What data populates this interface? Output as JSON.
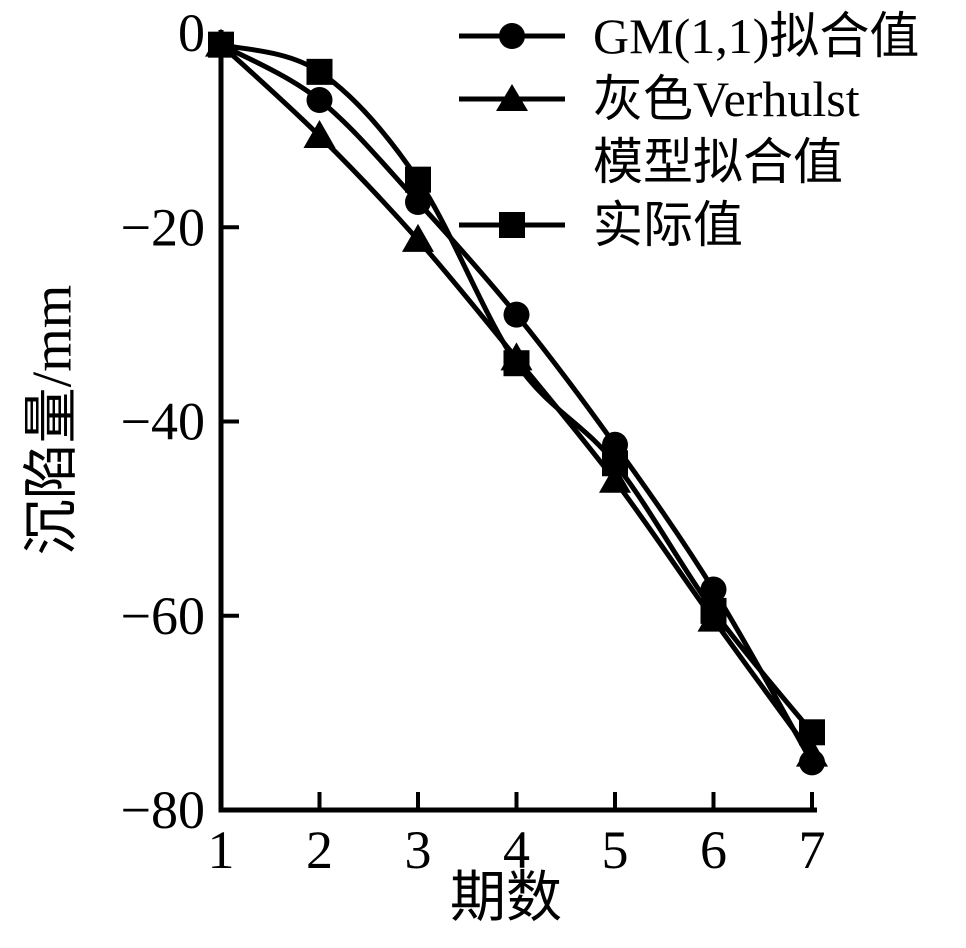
{
  "figure": {
    "background": "#ffffff",
    "ink_color": "#000000"
  },
  "chart_data": {
    "type": "line",
    "x": [
      1,
      2,
      3,
      4,
      5,
      6,
      7
    ],
    "series": [
      {
        "name": "GM(1,1)拟合值",
        "marker": "circle",
        "values": [
          -1.2,
          -6.9,
          -17.4,
          -29.0,
          -42.4,
          -57.3,
          -75.1
        ]
      },
      {
        "name": "灰色Verhulst模型拟合值",
        "marker": "triangle",
        "values": [
          -1.2,
          -10.6,
          -21.3,
          -33.5,
          -46.1,
          -60.4,
          -74.3
        ]
      },
      {
        "name": "实际值",
        "marker": "square",
        "values": [
          -1.2,
          -4.0,
          -15.1,
          -34.0,
          -44.3,
          -59.5,
          -72.0
        ]
      }
    ],
    "xlabel": "期数",
    "ylabel": "沉陷量/mm",
    "xlim": [
      1,
      7
    ],
    "ylim": [
      -80,
      0
    ],
    "xticks": [
      1,
      2,
      3,
      4,
      5,
      6,
      7
    ],
    "xtick_labels": [
      "1",
      "2",
      "3",
      "4",
      "5",
      "6",
      "7"
    ],
    "yticks": [
      0,
      -20,
      -40,
      -60,
      -80
    ],
    "ytick_labels": [
      "0",
      "−20",
      "−40",
      "−60",
      "−80"
    ],
    "grid": false,
    "legend_position": "top-right",
    "line_color": "#000000"
  },
  "legend": {
    "rows": [
      {
        "label": "GM(1,1)拟合值",
        "marker": "circle"
      },
      {
        "label": "灰色Verhulst",
        "marker": "triangle"
      },
      {
        "label": "模型拟合值",
        "marker": "none"
      },
      {
        "label": "实际值",
        "marker": "square"
      }
    ]
  }
}
